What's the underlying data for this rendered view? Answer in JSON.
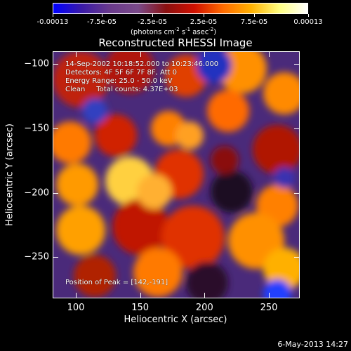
{
  "colorbar": {
    "tick_labels": [
      "-0.00013",
      "-7.5e-05",
      "-2.5e-05",
      "2.5e-05",
      "7.5e-05",
      "0.00013"
    ],
    "units": "(photons cm",
    "units_exp1": "-2",
    "units_mid": " s",
    "units_exp2": "-1",
    "units_mid2": " asec",
    "units_exp3": "-2",
    "units_end": ")",
    "colors": [
      "#0000ff",
      "#3a1aa8",
      "#6a3a8c",
      "#7a4a8a",
      "#8a1010",
      "#d01000",
      "#ff6a00",
      "#ffb000",
      "#ffff80",
      "#ffffff"
    ]
  },
  "title": "Reconstructed RHESSI Image",
  "info": {
    "line1": "14-Sep-2002 10:18:52.000 to 10:23:46.000",
    "line2": "Detectors: 4F 5F 6F 7F 8F, Att 0",
    "line3": "Energy Range: 25.0 - 50.0 keV",
    "line4": "Clean     Total counts: 4.37E+03",
    "peak": "Position of Peak = [142,-191]"
  },
  "chart_data": {
    "type": "heatmap",
    "title": "Reconstructed RHESSI Image",
    "xlabel": "Heliocentric X (arcsec)",
    "ylabel": "Heliocentric Y (arcsec)",
    "xlim": [
      82,
      274
    ],
    "ylim": [
      -282,
      -90
    ],
    "x_ticks": [
      "100",
      "150",
      "200",
      "250"
    ],
    "y_ticks": [
      "-100",
      "-150",
      "-200",
      "-250"
    ],
    "color_range": [
      -0.00013,
      0.00013
    ],
    "peak_position": [
      142,
      -191
    ]
  },
  "footer": "6-May-2013 14:27"
}
